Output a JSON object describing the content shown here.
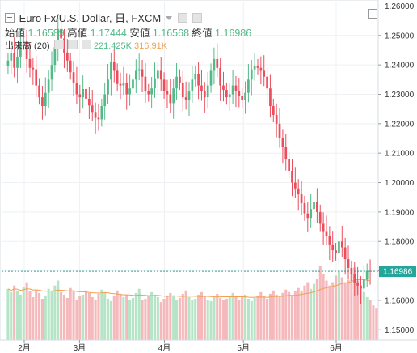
{
  "legend": {
    "symbol": "Euro Fx/U.S. Dollar, 日, FXCM",
    "open_label": "始値",
    "open": "1.16589",
    "high_label": "高値",
    "high": "1.17444",
    "low_label": "安値",
    "low": "1.16568",
    "close_label": "終値",
    "close": "1.16986",
    "volume_label": "出来高 (20)",
    "volume": "221.425K",
    "volume_ma": "316.91K"
  },
  "colors": {
    "up": "#53b987",
    "down": "#eb4d5c",
    "vol_up": "#b6e4c7",
    "vol_down": "#f5b8bb",
    "ma": "#f0a050",
    "grid": "#eef0f3",
    "last_price": "#26a69a"
  },
  "icons": [
    "minus-icon",
    "dropdown-caret-icon",
    "settings-icon",
    "gear-icon"
  ],
  "chart_data": {
    "type": "candlestick",
    "y_ticks": [
      "1.26000",
      "1.25000",
      "1.24000",
      "1.23000",
      "1.22000",
      "1.21000",
      "1.20000",
      "1.19000",
      "1.18000",
      "1.17000",
      "1.16000",
      "1.15000"
    ],
    "ylim": [
      1.1465,
      1.2615
    ],
    "x_ticks": [
      "2月",
      "3月",
      "4月",
      "5月",
      "6月"
    ],
    "x_tick_days": [
      9,
      37,
      80,
      120,
      167
    ],
    "total_days": 185,
    "last_price_label": "1.16986",
    "last_price": 1.16986,
    "closes": [
      1.2415,
      1.244,
      1.239,
      1.2428,
      1.2476,
      1.248,
      1.242,
      1.239,
      1.2385,
      1.233,
      1.229,
      1.226,
      1.2305,
      1.235,
      1.24,
      1.246,
      1.2522,
      1.249,
      1.2442,
      1.2415,
      1.2375,
      1.234,
      1.23,
      1.229,
      1.2318,
      1.2285,
      1.2262,
      1.224,
      1.222,
      1.2215,
      1.226,
      1.23,
      1.235,
      1.241,
      1.238,
      1.2335,
      1.233,
      1.234,
      1.23,
      1.232,
      1.235,
      1.238,
      1.2385,
      1.236,
      1.231,
      1.23,
      1.232,
      1.2355,
      1.238,
      1.235,
      1.231,
      1.23,
      1.227,
      1.232,
      1.236,
      1.234,
      1.229,
      1.228,
      1.231,
      1.235,
      1.237,
      1.233,
      1.231,
      1.229,
      1.233,
      1.238,
      1.242,
      1.239,
      1.233,
      1.2315,
      1.229,
      1.23,
      1.233,
      1.231,
      1.2295,
      1.228,
      1.2305,
      1.235,
      1.2385,
      1.2395,
      1.239,
      1.238,
      1.236,
      1.232,
      1.226,
      1.223,
      1.22,
      1.215,
      1.212,
      1.208,
      1.204,
      1.2,
      1.198,
      1.196,
      1.193,
      1.1895,
      1.188,
      1.191,
      1.1935,
      1.19,
      1.186,
      1.1835,
      1.182,
      1.179,
      1.177,
      1.176,
      1.18,
      1.178,
      1.174,
      1.171,
      1.169,
      1.166,
      1.165,
      1.164,
      1.167,
      1.17,
      1.1699
    ],
    "volumes": [
      0.62,
      0.58,
      0.66,
      0.6,
      0.55,
      0.64,
      0.7,
      0.59,
      0.52,
      0.61,
      0.57,
      0.5,
      0.54,
      0.62,
      0.6,
      0.66,
      0.72,
      0.58,
      0.55,
      0.51,
      0.63,
      0.59,
      0.48,
      0.53,
      0.55,
      0.6,
      0.57,
      0.52,
      0.49,
      0.56,
      0.61,
      0.58,
      0.5,
      0.47,
      0.54,
      0.6,
      0.56,
      0.52,
      0.55,
      0.49,
      0.51,
      0.57,
      0.62,
      0.48,
      0.5,
      0.53,
      0.58,
      0.55,
      0.52,
      0.46,
      0.5,
      0.54,
      0.57,
      0.53,
      0.49,
      0.51,
      0.56,
      0.6,
      0.52,
      0.48,
      0.5,
      0.55,
      0.58,
      0.53,
      0.49,
      0.47,
      0.52,
      0.56,
      0.51,
      0.48,
      0.5,
      0.54,
      0.57,
      0.53,
      0.49,
      0.52,
      0.55,
      0.5,
      0.47,
      0.51,
      0.54,
      0.58,
      0.53,
      0.5,
      0.56,
      0.6,
      0.55,
      0.52,
      0.57,
      0.61,
      0.58,
      0.54,
      0.59,
      0.63,
      0.6,
      0.66,
      0.7,
      0.62,
      0.68,
      0.74,
      0.9,
      0.8,
      0.72,
      0.66,
      0.7,
      0.78,
      0.84,
      0.76,
      0.7,
      0.73,
      0.8,
      0.88,
      0.72,
      0.65,
      0.58,
      0.52,
      0.48,
      0.42,
      0.38
    ]
  }
}
